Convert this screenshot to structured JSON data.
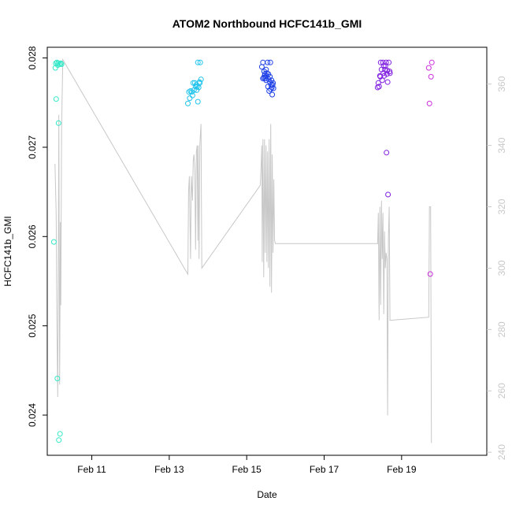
{
  "chart_data": {
    "type": "scatter",
    "title": "ATOM2 Northbound HCFC141b_GMI",
    "xlabel": "Date",
    "ylabel": "HCFC141b_GMI",
    "x_unit": "day of February",
    "xlim": [
      9.85,
      21.2
    ],
    "ylim": [
      0.02355,
      0.02812
    ],
    "y2lim": [
      239.0,
      372.0
    ],
    "x_ticks": [
      {
        "x": 11,
        "label": "Feb 11"
      },
      {
        "x": 13,
        "label": "Feb 13"
      },
      {
        "x": 15,
        "label": "Feb 15"
      },
      {
        "x": 17,
        "label": "Feb 17"
      },
      {
        "x": 19,
        "label": "Feb 19"
      }
    ],
    "y_ticks": [
      {
        "y": 0.024,
        "label": "0.024"
      },
      {
        "y": 0.025,
        "label": "0.025"
      },
      {
        "y": 0.026,
        "label": "0.026"
      },
      {
        "y": 0.027,
        "label": "0.027"
      },
      {
        "y": 0.028,
        "label": "0.028"
      }
    ],
    "y2_ticks": [
      {
        "y": 240,
        "label": "240"
      },
      {
        "y": 260,
        "label": "260"
      },
      {
        "y": 280,
        "label": "280"
      },
      {
        "y": 300,
        "label": "300"
      },
      {
        "y": 320,
        "label": "320"
      },
      {
        "y": 340,
        "label": "340"
      },
      {
        "y": 360,
        "label": "360"
      }
    ],
    "grid": false,
    "legend": "none",
    "colors": {
      "line": "#c8c8c8",
      "axis": "#000000",
      "right_axis": "#c8c8c8"
    },
    "line_series": {
      "axis": "right",
      "points": [
        [
          10.05,
          334
        ],
        [
          10.08,
          318
        ],
        [
          10.1,
          280
        ],
        [
          10.12,
          258
        ],
        [
          10.13,
          285
        ],
        [
          10.15,
          350
        ],
        [
          10.17,
          262
        ],
        [
          10.19,
          315
        ],
        [
          10.2,
          288
        ],
        [
          10.22,
          345
        ],
        [
          10.25,
          368
        ],
        [
          13.48,
          298
        ],
        [
          13.5,
          325
        ],
        [
          13.52,
          330
        ],
        [
          13.55,
          303
        ],
        [
          13.57,
          330
        ],
        [
          13.6,
          322
        ],
        [
          13.62,
          335
        ],
        [
          13.64,
          337
        ],
        [
          13.66,
          332
        ],
        [
          13.68,
          306
        ],
        [
          13.7,
          338
        ],
        [
          13.72,
          340
        ],
        [
          13.74,
          309
        ],
        [
          13.75,
          340
        ],
        [
          13.77,
          303
        ],
        [
          13.79,
          340
        ],
        [
          13.81,
          345
        ],
        [
          13.82,
          347
        ],
        [
          13.84,
          300
        ],
        [
          15.35,
          327
        ],
        [
          15.37,
          333
        ],
        [
          15.39,
          340
        ],
        [
          15.4,
          302
        ],
        [
          15.42,
          342
        ],
        [
          15.44,
          297
        ],
        [
          15.46,
          342
        ],
        [
          15.48,
          305
        ],
        [
          15.5,
          340
        ],
        [
          15.52,
          302
        ],
        [
          15.54,
          338
        ],
        [
          15.56,
          300
        ],
        [
          15.58,
          342
        ],
        [
          15.6,
          294
        ],
        [
          15.62,
          347
        ],
        [
          15.64,
          292
        ],
        [
          15.66,
          337
        ],
        [
          15.68,
          305
        ],
        [
          15.7,
          329
        ],
        [
          15.72,
          309
        ],
        [
          15.74,
          308
        ],
        [
          18.38,
          308
        ],
        [
          18.4,
          318
        ],
        [
          18.42,
          283
        ],
        [
          18.44,
          320
        ],
        [
          18.46,
          288
        ],
        [
          18.48,
          322
        ],
        [
          18.5,
          303
        ],
        [
          18.52,
          318
        ],
        [
          18.54,
          285
        ],
        [
          18.56,
          312
        ],
        [
          18.58,
          300
        ],
        [
          18.6,
          305
        ],
        [
          18.62,
          303
        ],
        [
          18.64,
          252
        ],
        [
          18.66,
          310
        ],
        [
          18.68,
          320
        ],
        [
          18.7,
          283
        ],
        [
          18.72,
          283
        ],
        [
          19.7,
          284
        ],
        [
          19.72,
          320
        ],
        [
          19.75,
          320
        ],
        [
          19.77,
          243
        ]
      ]
    },
    "scatter_series": [
      {
        "color": "#33e8c8",
        "points": [
          [
            10.02,
            0.02594
          ],
          [
            10.06,
            0.02789
          ],
          [
            10.07,
            0.02794
          ],
          [
            10.08,
            0.02754
          ],
          [
            10.1,
            0.02795
          ],
          [
            10.11,
            0.02441
          ],
          [
            10.12,
            0.02792
          ],
          [
            10.13,
            0.02794
          ],
          [
            10.14,
            0.02727
          ],
          [
            10.15,
            0.02372
          ],
          [
            10.17,
            0.02793
          ],
          [
            10.2,
            0.02794
          ],
          [
            10.22,
            0.02793
          ],
          [
            10.18,
            0.02379
          ]
        ]
      },
      {
        "color": "#22c4ec",
        "points": [
          [
            13.48,
            0.02749
          ],
          [
            13.51,
            0.02762
          ],
          [
            13.53,
            0.02755
          ],
          [
            13.55,
            0.02763
          ],
          [
            13.58,
            0.02762
          ],
          [
            13.6,
            0.02758
          ],
          [
            13.62,
            0.02772
          ],
          [
            13.64,
            0.02764
          ],
          [
            13.66,
            0.02772
          ],
          [
            13.68,
            0.02768
          ],
          [
            13.7,
            0.0277
          ],
          [
            13.72,
            0.02768
          ],
          [
            13.74,
            0.02751
          ],
          [
            13.76,
            0.02767
          ],
          [
            13.74,
            0.02795
          ],
          [
            13.78,
            0.02773
          ],
          [
            13.8,
            0.02795
          ],
          [
            13.82,
            0.02776
          ],
          [
            13.79,
            0.02772
          ],
          [
            13.71,
            0.02764
          ]
        ]
      },
      {
        "color": "#1e40e6",
        "points": [
          [
            15.39,
            0.0279
          ],
          [
            15.42,
            0.02795
          ],
          [
            15.44,
            0.02778
          ],
          [
            15.45,
            0.02785
          ],
          [
            15.47,
            0.02782
          ],
          [
            15.48,
            0.02777
          ],
          [
            15.5,
            0.02787
          ],
          [
            15.51,
            0.0278
          ],
          [
            15.52,
            0.02783
          ],
          [
            15.54,
            0.02795
          ],
          [
            15.55,
            0.02768
          ],
          [
            15.57,
            0.02776
          ],
          [
            15.58,
            0.02763
          ],
          [
            15.6,
            0.02773
          ],
          [
            15.61,
            0.02795
          ],
          [
            15.62,
            0.02765
          ],
          [
            15.63,
            0.0277
          ],
          [
            15.65,
            0.02767
          ],
          [
            15.66,
            0.02759
          ],
          [
            15.68,
            0.02772
          ],
          [
            15.69,
            0.02766
          ],
          [
            15.46,
            0.0278
          ],
          [
            15.56,
            0.02782
          ],
          [
            15.64,
            0.02775
          ],
          [
            15.42,
            0.02777
          ],
          [
            15.5,
            0.02775
          ],
          [
            15.6,
            0.02779
          ],
          [
            15.67,
            0.0277
          ]
        ]
      },
      {
        "color": "#8020e0",
        "points": [
          [
            18.38,
            0.02767
          ],
          [
            18.4,
            0.02772
          ],
          [
            18.42,
            0.02768
          ],
          [
            18.44,
            0.0278
          ],
          [
            18.46,
            0.02795
          ],
          [
            18.48,
            0.02787
          ],
          [
            18.5,
            0.02775
          ],
          [
            18.52,
            0.02795
          ],
          [
            18.54,
            0.02791
          ],
          [
            18.55,
            0.0278
          ],
          [
            18.57,
            0.02787
          ],
          [
            18.58,
            0.02791
          ],
          [
            18.6,
            0.02795
          ],
          [
            18.61,
            0.02694
          ],
          [
            18.62,
            0.02782
          ],
          [
            18.64,
            0.02773
          ],
          [
            18.65,
            0.02647
          ],
          [
            18.67,
            0.02795
          ],
          [
            18.69,
            0.02785
          ],
          [
            18.7,
            0.02783
          ],
          [
            18.45,
            0.02779
          ],
          [
            18.53,
            0.02783
          ],
          [
            18.63,
            0.02786
          ]
        ]
      },
      {
        "color": "#cc30dc",
        "points": [
          [
            19.7,
            0.02789
          ],
          [
            19.72,
            0.02749
          ],
          [
            19.74,
            0.02558
          ],
          [
            19.76,
            0.02779
          ],
          [
            19.78,
            0.02795
          ]
        ]
      }
    ]
  }
}
